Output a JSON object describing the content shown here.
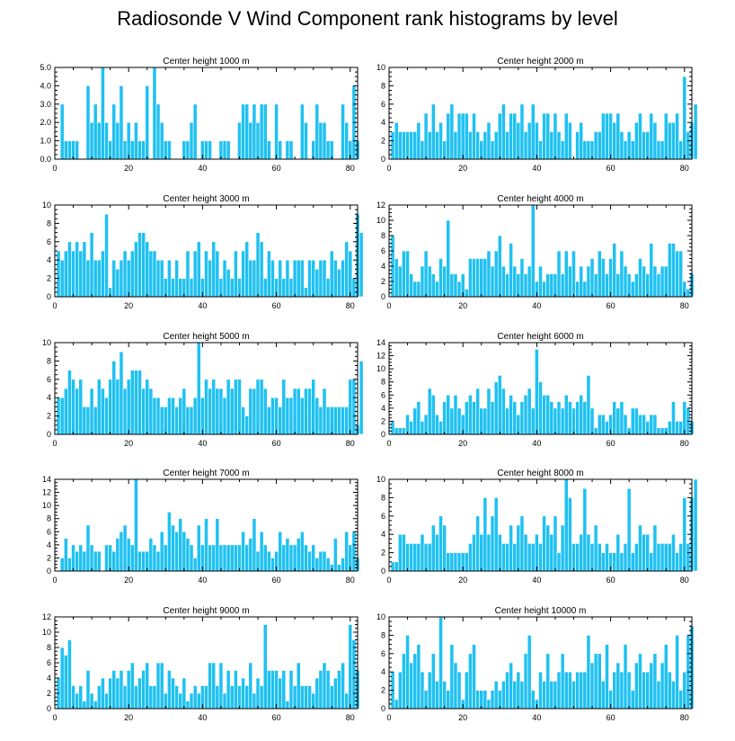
{
  "title": "Radiosonde V Wind Component rank histograms by level",
  "colors": {
    "bar": "#1fc1f2",
    "axis": "#000000",
    "background": "#ffffff"
  },
  "chart_data": [
    {
      "type": "bar",
      "title": "Center height 1000 m",
      "xlabel": "",
      "ylabel": "",
      "xlim": [
        0,
        82
      ],
      "ylim": [
        0,
        5
      ],
      "xticks": [
        "0",
        "20",
        "40",
        "60",
        "80"
      ],
      "xtick_values": [
        0,
        20,
        40,
        60,
        80
      ],
      "yticks": [
        "0.0",
        "1.0",
        "2.0",
        "3.0",
        "4.0",
        "5.0"
      ],
      "ytick_values": [
        0,
        1,
        2,
        3,
        4,
        5
      ],
      "categories_start": 1,
      "values": [
        0,
        3,
        1,
        1,
        1,
        1,
        0,
        0,
        4,
        2,
        3,
        2,
        5,
        2,
        1,
        3,
        2,
        4,
        1,
        2,
        1,
        2,
        1,
        1,
        4,
        0,
        5,
        3,
        2,
        1,
        1,
        0,
        0,
        0,
        1,
        1,
        2,
        3,
        0,
        1,
        1,
        1,
        0,
        0,
        1,
        1,
        1,
        0,
        0,
        2,
        3,
        3,
        2,
        3,
        2,
        3,
        3,
        1,
        0,
        3,
        1,
        0,
        1,
        1,
        0,
        0,
        3,
        2,
        0,
        1,
        3,
        2,
        2,
        1,
        1,
        0,
        0,
        3,
        2,
        1,
        4,
        1
      ]
    },
    {
      "type": "bar",
      "title": "Center height 2000 m",
      "xlabel": "",
      "ylabel": "",
      "xlim": [
        0,
        82
      ],
      "ylim": [
        0,
        10
      ],
      "xticks": [
        "0",
        "20",
        "40",
        "60",
        "80"
      ],
      "xtick_values": [
        0,
        20,
        40,
        60,
        80
      ],
      "yticks": [
        "0",
        "2",
        "4",
        "6",
        "8",
        "10"
      ],
      "ytick_values": [
        0,
        2,
        4,
        6,
        8,
        10
      ],
      "categories_start": 1,
      "values": [
        3,
        4,
        3,
        3,
        3,
        3,
        3,
        4,
        2,
        5,
        3,
        6,
        3,
        4,
        2,
        5,
        6,
        3,
        5,
        5,
        5,
        3,
        5,
        3,
        2,
        3,
        4,
        2,
        3,
        5,
        6,
        3,
        5,
        5,
        4,
        6,
        3,
        4,
        6,
        4,
        2,
        5,
        5,
        3,
        5,
        3,
        2,
        5,
        4,
        0,
        3,
        4,
        2,
        2,
        2,
        3,
        3,
        5,
        5,
        5,
        4,
        5,
        3,
        2,
        3,
        2,
        4,
        5,
        3,
        3,
        5,
        4,
        2,
        2,
        5,
        4,
        4,
        5,
        2,
        9,
        3,
        4,
        6
      ]
    },
    {
      "type": "bar",
      "title": "Center height 3000 m",
      "xlabel": "",
      "ylabel": "",
      "xlim": [
        0,
        82
      ],
      "ylim": [
        0,
        10
      ],
      "xticks": [
        "0",
        "20",
        "40",
        "60",
        "80"
      ],
      "xtick_values": [
        0,
        20,
        40,
        60,
        80
      ],
      "yticks": [
        "0",
        "2",
        "4",
        "6",
        "8",
        "10"
      ],
      "ytick_values": [
        0,
        2,
        4,
        6,
        8,
        10
      ],
      "categories_start": 1,
      "values": [
        5,
        4,
        5,
        6,
        5,
        6,
        5,
        6,
        4,
        7,
        4,
        4,
        5,
        9,
        1,
        4,
        3,
        4,
        5,
        4,
        5,
        6,
        7,
        7,
        6,
        5,
        5,
        4,
        4,
        2,
        4,
        2,
        4,
        2,
        2,
        5,
        2,
        5,
        6,
        2,
        5,
        4,
        6,
        5,
        2,
        4,
        3,
        2,
        5,
        2,
        5,
        6,
        4,
        4,
        7,
        6,
        2,
        5,
        4,
        2,
        4,
        2,
        4,
        2,
        4,
        4,
        4,
        1,
        4,
        4,
        3,
        4,
        4,
        2,
        5,
        4,
        3,
        4,
        6,
        5,
        2,
        9,
        7
      ]
    },
    {
      "type": "bar",
      "title": "Center height 4000 m",
      "xlabel": "",
      "ylabel": "",
      "xlim": [
        0,
        82
      ],
      "ylim": [
        0,
        12
      ],
      "xticks": [
        "0",
        "20",
        "40",
        "60",
        "80"
      ],
      "xtick_values": [
        0,
        20,
        40,
        60,
        80
      ],
      "yticks": [
        "0",
        "2",
        "4",
        "6",
        "8",
        "10",
        "12"
      ],
      "ytick_values": [
        0,
        2,
        4,
        6,
        8,
        10,
        12
      ],
      "categories_start": 1,
      "values": [
        8,
        5,
        4,
        6,
        6,
        3,
        2,
        2,
        4,
        6,
        4,
        3,
        2,
        5,
        4,
        10,
        3,
        3,
        2,
        3,
        1,
        5,
        5,
        5,
        5,
        5,
        6,
        4,
        6,
        8,
        4,
        3,
        7,
        4,
        3,
        5,
        3,
        4,
        12,
        2,
        4,
        2,
        3,
        3,
        3,
        6,
        3,
        6,
        4,
        6,
        2,
        4,
        2,
        4,
        5,
        3,
        6,
        5,
        3,
        5,
        7,
        3,
        6,
        4,
        3,
        2,
        3,
        5,
        4,
        3,
        7,
        4,
        3,
        4,
        4,
        7,
        7,
        6,
        6,
        2,
        1,
        3
      ]
    },
    {
      "type": "bar",
      "title": "Center height 5000 m",
      "xlabel": "",
      "ylabel": "",
      "xlim": [
        0,
        82
      ],
      "ylim": [
        0,
        10
      ],
      "xticks": [
        "0",
        "20",
        "40",
        "60",
        "80"
      ],
      "xtick_values": [
        0,
        20,
        40,
        60,
        80
      ],
      "yticks": [
        "0",
        "2",
        "4",
        "6",
        "8",
        "10"
      ],
      "ytick_values": [
        0,
        2,
        4,
        6,
        8,
        10
      ],
      "categories_start": 1,
      "values": [
        4,
        4,
        5,
        7,
        6,
        5,
        6,
        3,
        3,
        5,
        3,
        6,
        5,
        4,
        6,
        8,
        6,
        9,
        5,
        6,
        7,
        7,
        7,
        5,
        6,
        5,
        4,
        4,
        3,
        3,
        4,
        4,
        3,
        4,
        5,
        3,
        3,
        4,
        10,
        4,
        6,
        5,
        6,
        5,
        5,
        4,
        6,
        5,
        6,
        6,
        3,
        2,
        5,
        5,
        6,
        6,
        5,
        3,
        4,
        4,
        3,
        6,
        4,
        4,
        5,
        5,
        4,
        5,
        5,
        6,
        4,
        3,
        5,
        3,
        3,
        3,
        3,
        3,
        3,
        6,
        6,
        1,
        8
      ]
    },
    {
      "type": "bar",
      "title": "Center height 6000 m",
      "xlabel": "",
      "ylabel": "",
      "xlim": [
        0,
        82
      ],
      "ylim": [
        0,
        14
      ],
      "xticks": [
        "0",
        "20",
        "40",
        "60",
        "80"
      ],
      "xtick_values": [
        0,
        20,
        40,
        60,
        80
      ],
      "yticks": [
        "0",
        "2",
        "4",
        "6",
        "8",
        "10",
        "12",
        "14"
      ],
      "ytick_values": [
        0,
        2,
        4,
        6,
        8,
        10,
        12,
        14
      ],
      "categories_start": 1,
      "values": [
        2,
        1,
        1,
        1,
        3,
        2,
        4,
        5,
        2,
        3,
        7,
        6,
        3,
        2,
        5,
        6,
        4,
        6,
        4,
        3,
        5,
        6,
        5,
        7,
        4,
        4,
        7,
        5,
        8,
        9,
        7,
        4,
        6,
        5,
        3,
        5,
        6,
        7,
        4,
        13,
        8,
        6,
        6,
        5,
        4,
        5,
        4,
        6,
        5,
        4,
        5,
        6,
        5,
        9,
        4,
        1,
        3,
        3,
        2,
        3,
        5,
        4,
        5,
        3,
        1,
        4,
        4,
        3,
        3,
        2,
        3,
        3,
        1,
        1,
        1,
        2,
        5,
        2,
        2,
        5,
        4,
        2
      ]
    },
    {
      "type": "bar",
      "title": "Center height 7000 m",
      "xlabel": "",
      "ylabel": "",
      "xlim": [
        0,
        82
      ],
      "ylim": [
        0,
        14
      ],
      "xticks": [
        "0",
        "20",
        "40",
        "60",
        "80"
      ],
      "xtick_values": [
        0,
        20,
        40,
        60,
        80
      ],
      "yticks": [
        "0",
        "2",
        "4",
        "6",
        "8",
        "10",
        "12",
        "14"
      ],
      "ytick_values": [
        0,
        2,
        4,
        6,
        8,
        10,
        12,
        14
      ],
      "categories_start": 1,
      "values": [
        0,
        2,
        5,
        2,
        4,
        3,
        4,
        3,
        7,
        4,
        3,
        3,
        0,
        4,
        4,
        3,
        5,
        6,
        7,
        5,
        4,
        14,
        3,
        3,
        3,
        5,
        4,
        3,
        6,
        4,
        9,
        7,
        6,
        8,
        6,
        5,
        4,
        2,
        7,
        4,
        8,
        4,
        4,
        8,
        4,
        4,
        4,
        4,
        4,
        4,
        6,
        4,
        5,
        8,
        3,
        6,
        4,
        3,
        2,
        3,
        6,
        4,
        5,
        4,
        4,
        5,
        6,
        4,
        3,
        4,
        2,
        3,
        3,
        2,
        1,
        5,
        1,
        2,
        6,
        4,
        6,
        2
      ]
    },
    {
      "type": "bar",
      "title": "Center height 8000 m",
      "xlabel": "",
      "ylabel": "",
      "xlim": [
        0,
        82
      ],
      "ylim": [
        0,
        10
      ],
      "xticks": [
        "0",
        "20",
        "40",
        "60",
        "80"
      ],
      "xtick_values": [
        0,
        20,
        40,
        60,
        80
      ],
      "yticks": [
        "0",
        "2",
        "4",
        "6",
        "8",
        "10"
      ],
      "ytick_values": [
        0,
        2,
        4,
        6,
        8,
        10
      ],
      "categories_start": 1,
      "values": [
        1,
        1,
        4,
        4,
        3,
        3,
        3,
        3,
        4,
        3,
        3,
        5,
        4,
        6,
        5,
        2,
        2,
        2,
        2,
        2,
        2,
        3,
        4,
        6,
        4,
        8,
        4,
        6,
        8,
        4,
        3,
        3,
        5,
        3,
        5,
        6,
        4,
        3,
        3,
        4,
        3,
        6,
        5,
        4,
        6,
        2,
        5,
        10,
        8,
        3,
        3,
        4,
        9,
        4,
        3,
        5,
        3,
        2,
        3,
        2,
        2,
        4,
        2,
        3,
        9,
        2,
        3,
        5,
        4,
        4,
        2,
        5,
        3,
        3,
        3,
        3,
        4,
        2,
        3,
        8,
        3,
        8,
        10
      ]
    },
    {
      "type": "bar",
      "title": "Center height 9000 m",
      "xlabel": "",
      "ylabel": "",
      "xlim": [
        0,
        82
      ],
      "ylim": [
        0,
        12
      ],
      "xticks": [
        "0",
        "20",
        "40",
        "60",
        "80"
      ],
      "xtick_values": [
        0,
        20,
        40,
        60,
        80
      ],
      "yticks": [
        "0",
        "2",
        "4",
        "6",
        "8",
        "10",
        "12"
      ],
      "ytick_values": [
        0,
        2,
        4,
        6,
        8,
        10,
        12
      ],
      "categories_start": 1,
      "values": [
        4,
        8,
        7,
        9,
        3,
        2,
        3,
        1,
        5,
        2,
        1,
        3,
        4,
        2,
        4,
        5,
        4,
        5,
        3,
        5,
        6,
        3,
        4,
        5,
        6,
        3,
        3,
        6,
        6,
        2,
        5,
        4,
        3,
        2,
        4,
        1,
        2,
        3,
        2,
        3,
        3,
        6,
        6,
        3,
        6,
        2,
        5,
        3,
        5,
        3,
        4,
        3,
        6,
        2,
        4,
        3,
        11,
        5,
        5,
        5,
        4,
        5,
        1,
        5,
        3,
        6,
        3,
        3,
        3,
        2,
        4,
        5,
        6,
        5,
        3,
        4,
        5,
        6,
        2,
        11,
        9,
        5
      ]
    },
    {
      "type": "bar",
      "title": "Center height 10000 m",
      "xlabel": "",
      "ylabel": "",
      "xlim": [
        0,
        82
      ],
      "ylim": [
        0,
        10
      ],
      "xticks": [
        "0",
        "20",
        "40",
        "60",
        "80"
      ],
      "xtick_values": [
        0,
        20,
        40,
        60,
        80
      ],
      "yticks": [
        "0",
        "2",
        "4",
        "6",
        "8",
        "10"
      ],
      "ytick_values": [
        0,
        2,
        4,
        6,
        8,
        10
      ],
      "categories_start": 1,
      "values": [
        4,
        1,
        4,
        6,
        8,
        5,
        6,
        7,
        4,
        2,
        4,
        6,
        3,
        10,
        3,
        2,
        7,
        5,
        4,
        1,
        4,
        6,
        7,
        2,
        2,
        2,
        1,
        2,
        3,
        2,
        3,
        4,
        5,
        3,
        4,
        3,
        6,
        8,
        2,
        1,
        4,
        3,
        6,
        3,
        3,
        4,
        6,
        4,
        4,
        3,
        4,
        4,
        4,
        8,
        5,
        6,
        6,
        3,
        7,
        2,
        4,
        5,
        4,
        7,
        4,
        2,
        5,
        6,
        4,
        4,
        5,
        6,
        3,
        5,
        7,
        4,
        3,
        8,
        2,
        4,
        8,
        9
      ]
    }
  ]
}
